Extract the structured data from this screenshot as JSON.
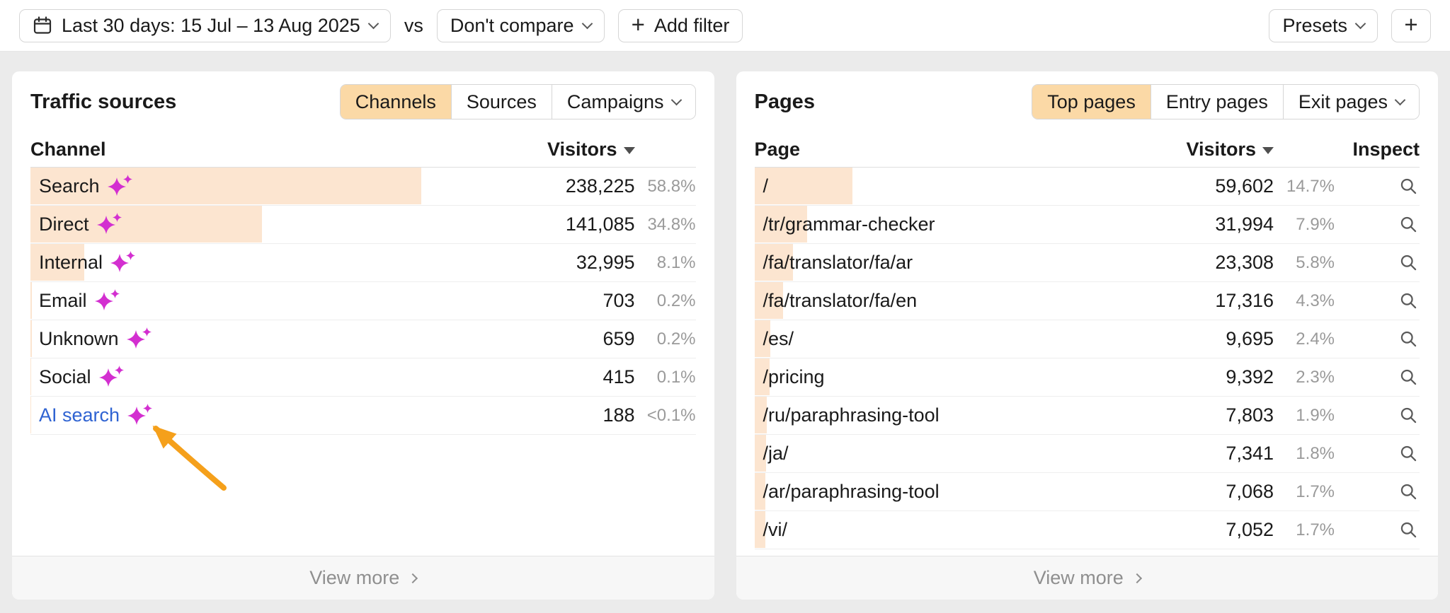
{
  "toolbar": {
    "date_range_label": "Last 30 days: 15 Jul – 13 Aug 2025",
    "vs_label": "vs",
    "compare_label": "Don't compare",
    "add_filter_label": "Add filter",
    "presets_label": "Presets"
  },
  "traffic_sources": {
    "title": "Traffic sources",
    "tabs": [
      {
        "label": "Channels",
        "active": true
      },
      {
        "label": "Sources",
        "active": false
      },
      {
        "label": "Campaigns",
        "active": false,
        "chevron": true
      }
    ],
    "columns": {
      "name": "Channel",
      "visitors": "Visitors"
    },
    "rows": [
      {
        "channel": "Search",
        "visitors": "238,225",
        "percent": "58.8%",
        "share": 58.8
      },
      {
        "channel": "Direct",
        "visitors": "141,085",
        "percent": "34.8%",
        "share": 34.8
      },
      {
        "channel": "Internal",
        "visitors": "32,995",
        "percent": "8.1%",
        "share": 8.1
      },
      {
        "channel": "Email",
        "visitors": "703",
        "percent": "0.2%",
        "share": 0.2
      },
      {
        "channel": "Unknown",
        "visitors": "659",
        "percent": "0.2%",
        "share": 0.2
      },
      {
        "channel": "Social",
        "visitors": "415",
        "percent": "0.1%",
        "share": 0.1
      },
      {
        "channel": "AI search",
        "visitors": "188",
        "percent": "<0.1%",
        "share": 0.05,
        "link": true,
        "sparkles": true
      }
    ],
    "view_more_label": "View more"
  },
  "pages": {
    "title": "Pages",
    "tabs": [
      {
        "label": "Top pages",
        "active": true
      },
      {
        "label": "Entry pages",
        "active": false
      },
      {
        "label": "Exit pages",
        "active": false,
        "chevron": true
      }
    ],
    "columns": {
      "name": "Page",
      "visitors": "Visitors",
      "inspect": "Inspect"
    },
    "rows": [
      {
        "page": "/",
        "visitors": "59,602",
        "percent": "14.7%",
        "share": 14.7
      },
      {
        "page": "/tr/grammar-checker",
        "visitors": "31,994",
        "percent": "7.9%",
        "share": 7.9
      },
      {
        "page": "/fa/translator/fa/ar",
        "visitors": "23,308",
        "percent": "5.8%",
        "share": 5.8
      },
      {
        "page": "/fa/translator/fa/en",
        "visitors": "17,316",
        "percent": "4.3%",
        "share": 4.3
      },
      {
        "page": "/es/",
        "visitors": "9,695",
        "percent": "2.4%",
        "share": 2.4
      },
      {
        "page": "/pricing",
        "visitors": "9,392",
        "percent": "2.3%",
        "share": 2.3
      },
      {
        "page": "/ru/paraphrasing-tool",
        "visitors": "7,803",
        "percent": "1.9%",
        "share": 1.9
      },
      {
        "page": "/ja/",
        "visitors": "7,341",
        "percent": "1.8%",
        "share": 1.8
      },
      {
        "page": "/ar/paraphrasing-tool",
        "visitors": "7,068",
        "percent": "1.7%",
        "share": 1.7
      },
      {
        "page": "/vi/",
        "visitors": "7,052",
        "percent": "1.7%",
        "share": 1.7
      }
    ],
    "view_more_label": "View more"
  },
  "colors": {
    "accent": "#fbd9a6",
    "row_bar": "#fce5d0",
    "link": "#2f63d2",
    "sparkle": "#d32fd0",
    "arrow": "#f5a01b"
  }
}
